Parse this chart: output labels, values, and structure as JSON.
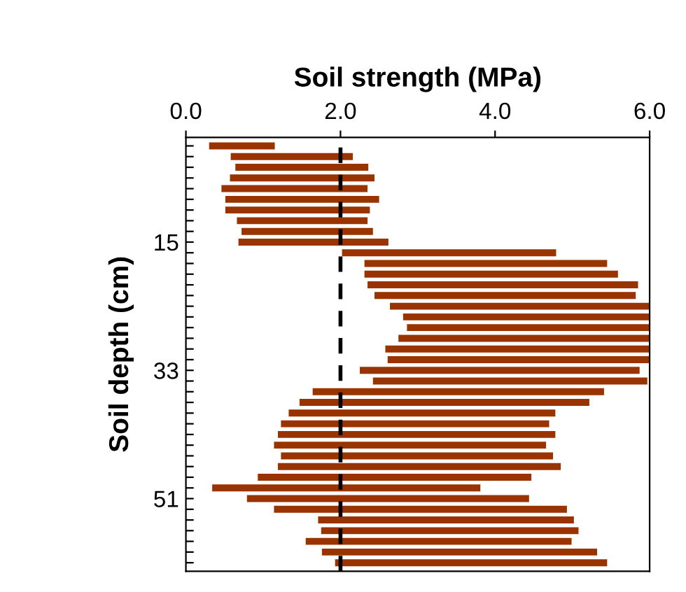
{
  "chart_data": {
    "type": "bar",
    "orientation": "horizontal",
    "xlabel": "Soil strength (MPa)",
    "ylabel": "Soil depth (cm)",
    "categories": [
      null,
      null,
      null,
      null,
      null,
      null,
      null,
      null,
      null,
      "15",
      null,
      null,
      null,
      null,
      null,
      null,
      null,
      null,
      null,
      null,
      null,
      "33",
      null,
      null,
      null,
      null,
      null,
      null,
      null,
      null,
      null,
      null,
      null,
      "51",
      null,
      null,
      null,
      null,
      null,
      null
    ],
    "base": [
      0.3,
      0.58,
      0.64,
      0.57,
      0.46,
      0.51,
      0.51,
      0.66,
      0.72,
      0.68,
      2.02,
      2.31,
      2.31,
      2.35,
      2.44,
      2.64,
      2.81,
      2.86,
      2.75,
      2.58,
      2.61,
      2.25,
      2.42,
      1.64,
      1.47,
      1.33,
      1.23,
      1.19,
      1.14,
      1.23,
      1.19,
      0.93,
      0.34,
      0.79,
      1.14,
      1.71,
      1.75,
      1.55,
      1.76,
      1.93
    ],
    "values": [
      0.85,
      1.58,
      1.72,
      1.87,
      1.89,
      1.99,
      1.87,
      1.69,
      1.7,
      1.94,
      2.77,
      3.14,
      3.28,
      3.5,
      3.38,
      3.36,
      3.19,
      3.14,
      3.25,
      3.42,
      3.39,
      3.62,
      3.55,
      3.77,
      3.75,
      3.45,
      3.47,
      3.59,
      3.52,
      3.52,
      3.66,
      3.54,
      3.47,
      3.65,
      3.79,
      3.31,
      3.33,
      3.44,
      3.56,
      3.52
    ],
    "color": "#993300",
    "xlim": [
      0,
      6
    ],
    "xticks": [
      {
        "value": 0,
        "label": "0.0"
      },
      {
        "value": 2,
        "label": "2.0"
      },
      {
        "value": 4,
        "label": "4.0"
      },
      {
        "value": 6,
        "label": "6.0"
      }
    ],
    "ref_lines": [
      {
        "axis": "x",
        "value": 2.0,
        "color": "#000000",
        "line_style": "dashed"
      }
    ],
    "grid": false
  }
}
